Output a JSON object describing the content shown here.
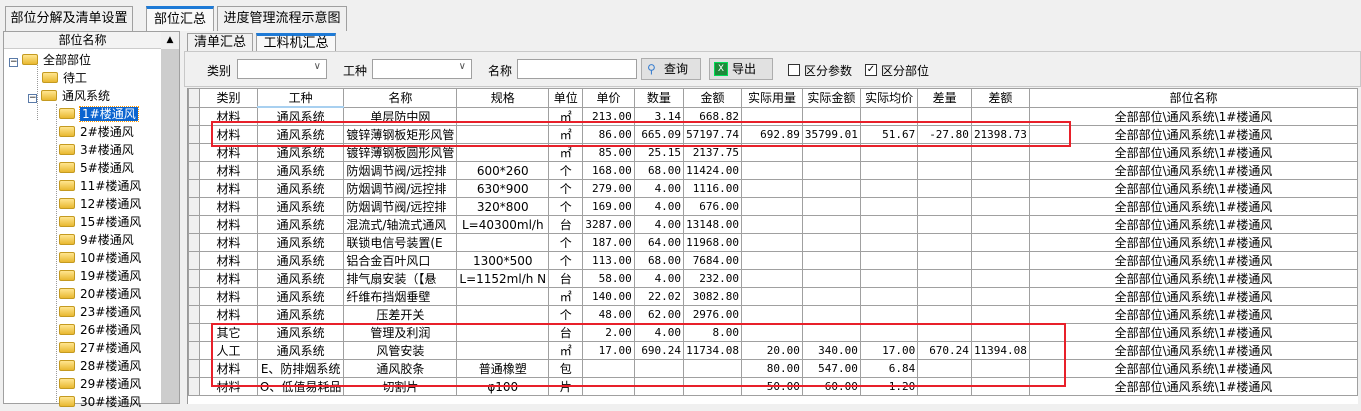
{
  "top_tabs": [
    {
      "label": "部位分解及清单设置"
    },
    {
      "label": "部位汇总",
      "active": true
    },
    {
      "label": "进度管理流程示意图"
    }
  ],
  "tree": {
    "header": "部位名称",
    "root": "全部部位",
    "items": [
      "待工",
      "通风系统"
    ],
    "children": [
      "1#楼通风",
      "2#楼通风",
      "3#楼通风",
      "5#楼通风",
      "11#楼通风",
      "12#楼通风",
      "15#楼通风",
      "9#楼通风",
      "10#楼通风",
      "19#楼通风",
      "20#楼通风",
      "23#楼通风",
      "26#楼通风",
      "27#楼通风",
      "28#楼通风",
      "29#楼通风",
      "30#楼通风"
    ],
    "selected": "1#楼通风"
  },
  "sub_tabs": [
    {
      "label": "清单汇总"
    },
    {
      "label": "工料机汇总",
      "active": true
    }
  ],
  "toolbar": {
    "category_label": "类别",
    "category_value": "",
    "trade_label": "工种",
    "trade_value": "",
    "name_label": "名称",
    "name_value": "",
    "query_label": "查询",
    "export_label": "导出",
    "distinguish_params_label": "区分参数",
    "distinguish_params_checked": false,
    "distinguish_location_label": "区分部位",
    "distinguish_location_checked": true
  },
  "table": {
    "columns": [
      "类别",
      "工种",
      "名称",
      "规格",
      "单位",
      "单价",
      "数量",
      "金额",
      "实际用量",
      "实际金额",
      "实际均价",
      "差量",
      "差额",
      "部位名称"
    ],
    "rows": [
      [
        "材料",
        "通风系统",
        "单层防中网",
        "",
        "㎡",
        "213.00",
        "3.14",
        "668.82",
        "",
        "",
        "",
        "",
        "",
        "全部部位\\通风系统\\1#楼通风"
      ],
      [
        "材料",
        "通风系统",
        "镀锌薄钢板矩形风管",
        "",
        "㎡",
        "86.00",
        "665.09",
        "57197.74",
        "692.89",
        "35799.01",
        "51.67",
        "-27.80",
        "21398.73",
        "全部部位\\通风系统\\1#楼通风"
      ],
      [
        "材料",
        "通风系统",
        "镀锌薄钢板圆形风管",
        "",
        "㎡",
        "85.00",
        "25.15",
        "2137.75",
        "",
        "",
        "",
        "",
        "",
        "全部部位\\通风系统\\1#楼通风"
      ],
      [
        "材料",
        "通风系统",
        "防烟调节阀/远控排",
        "600*260",
        "个",
        "168.00",
        "68.00",
        "11424.00",
        "",
        "",
        "",
        "",
        "",
        "全部部位\\通风系统\\1#楼通风"
      ],
      [
        "材料",
        "通风系统",
        "防烟调节阀/远控排",
        "630*900",
        "个",
        "279.00",
        "4.00",
        "1116.00",
        "",
        "",
        "",
        "",
        "",
        "全部部位\\通风系统\\1#楼通风"
      ],
      [
        "材料",
        "通风系统",
        "防烟调节阀/远控排",
        "320*800",
        "个",
        "169.00",
        "4.00",
        "676.00",
        "",
        "",
        "",
        "",
        "",
        "全部部位\\通风系统\\1#楼通风"
      ],
      [
        "材料",
        "通风系统",
        "混流式/轴流式通风",
        "L=40300ml/h",
        "台",
        "3287.00",
        "4.00",
        "13148.00",
        "",
        "",
        "",
        "",
        "",
        "全部部位\\通风系统\\1#楼通风"
      ],
      [
        "材料",
        "通风系统",
        "联锁电信号装置(E",
        "",
        "个",
        "187.00",
        "64.00",
        "11968.00",
        "",
        "",
        "",
        "",
        "",
        "全部部位\\通风系统\\1#楼通风"
      ],
      [
        "材料",
        "通风系统",
        "铝合金百叶风口",
        "1300*500",
        "个",
        "113.00",
        "68.00",
        "7684.00",
        "",
        "",
        "",
        "",
        "",
        "全部部位\\通风系统\\1#楼通风"
      ],
      [
        "材料",
        "通风系统",
        "排气扇安装（【悬",
        "L=1152ml/h N",
        "台",
        "58.00",
        "4.00",
        "232.00",
        "",
        "",
        "",
        "",
        "",
        "全部部位\\通风系统\\1#楼通风"
      ],
      [
        "材料",
        "通风系统",
        "纤维布挡烟垂壁",
        "",
        "㎡",
        "140.00",
        "22.02",
        "3082.80",
        "",
        "",
        "",
        "",
        "",
        "全部部位\\通风系统\\1#楼通风"
      ],
      [
        "材料",
        "通风系统",
        "压差开关",
        "",
        "个",
        "48.00",
        "62.00",
        "2976.00",
        "",
        "",
        "",
        "",
        "",
        "全部部位\\通风系统\\1#楼通风"
      ],
      [
        "其它",
        "通风系统",
        "管理及利润",
        "",
        "台",
        "2.00",
        "4.00",
        "8.00",
        "",
        "",
        "",
        "",
        "",
        "全部部位\\通风系统\\1#楼通风"
      ],
      [
        "人工",
        "通风系统",
        "风管安装",
        "",
        "㎡",
        "17.00",
        "690.24",
        "11734.08",
        "20.00",
        "340.00",
        "17.00",
        "670.24",
        "11394.08",
        "全部部位\\通风系统\\1#楼通风"
      ],
      [
        "材料",
        "E、防排烟系统",
        "通风胶条",
        "普通橡塑",
        "包",
        "",
        "",
        "",
        "80.00",
        "547.00",
        "6.84",
        "",
        "",
        "全部部位\\通风系统\\1#楼通风"
      ],
      [
        "材料",
        "O、低值易耗品",
        "切割片",
        "φ100",
        "片",
        "",
        "",
        "",
        "50.00",
        "60.00",
        "1.20",
        "",
        "",
        "全部部位\\通风系统\\1#楼通风"
      ]
    ]
  },
  "colors": {
    "accent": "#1e7ad6",
    "highlight_box": "#e8202a",
    "selection": "#0a64d0"
  }
}
